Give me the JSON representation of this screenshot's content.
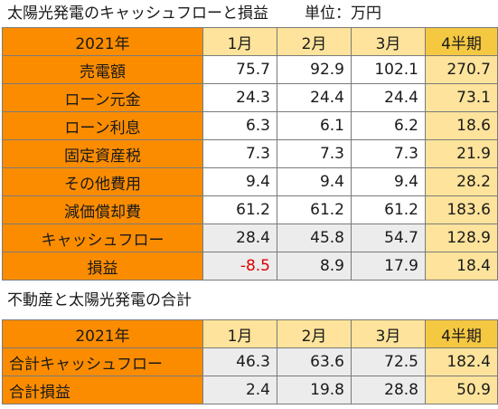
{
  "section1": {
    "title": "太陽光発電のキャッシュフローと損益",
    "unit": "単位：万円",
    "header": {
      "year": "2021年",
      "m1": "1月",
      "m2": "2月",
      "m3": "3月",
      "q": "4半期"
    },
    "rows": [
      {
        "label": "売電額",
        "v1": "75.7",
        "v2": "92.9",
        "v3": "102.1",
        "q": "270.7"
      },
      {
        "label": "ローン元金",
        "v1": "24.3",
        "v2": "24.4",
        "v3": "24.4",
        "q": "73.1"
      },
      {
        "label": "ローン利息",
        "v1": "6.3",
        "v2": "6.1",
        "v3": "6.2",
        "q": "18.6"
      },
      {
        "label": "固定資産税",
        "v1": "7.3",
        "v2": "7.3",
        "v3": "7.3",
        "q": "21.9"
      },
      {
        "label": "その他費用",
        "v1": "9.4",
        "v2": "9.4",
        "v3": "9.4",
        "q": "28.2"
      },
      {
        "label": "減価償却費",
        "v1": "61.2",
        "v2": "61.2",
        "v3": "61.2",
        "q": "183.6"
      },
      {
        "label": "キャッシュフロー",
        "v1": "28.4",
        "v2": "45.8",
        "v3": "54.7",
        "q": "128.9"
      },
      {
        "label": "損益",
        "v1": "-8.5",
        "v2": "8.9",
        "v3": "17.9",
        "q": "18.4"
      }
    ]
  },
  "section2": {
    "title": "不動産と太陽光発電の合計",
    "header": {
      "year": "2021年",
      "m1": "1月",
      "m2": "2月",
      "m3": "3月",
      "q": "4半期"
    },
    "rows": [
      {
        "label": "合計キャッシュフロー",
        "v1": "46.3",
        "v2": "63.6",
        "v3": "72.5",
        "q": "182.4"
      },
      {
        "label": "合計損益",
        "v1": "2.4",
        "v2": "19.8",
        "v3": "28.8",
        "q": "50.9"
      }
    ]
  },
  "colors": {
    "label_bg": "#fb8c00",
    "header_month_bg": "#fde39b",
    "header_quarter_bg": "#f5c842",
    "quarter_value_bg": "#fde39b",
    "highlight_row_bg": "#ececec",
    "negative_text": "#e00000"
  }
}
